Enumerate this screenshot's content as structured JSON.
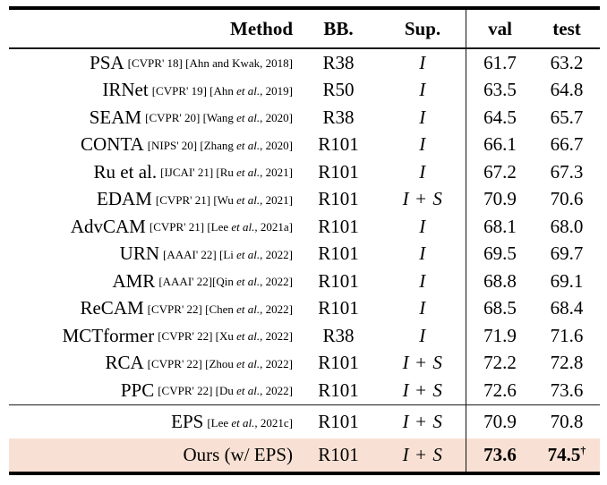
{
  "header": {
    "method": "Method",
    "bb": "BB.",
    "sup": "Sup.",
    "val": "val",
    "test": "test"
  },
  "rows": [
    {
      "method": "PSA",
      "citation": "[CVPR' 18] [Ahn and Kwak, 2018]",
      "bb": "R38",
      "sup": "I",
      "val": "61.7",
      "test": "63.2"
    },
    {
      "method": "IRNet",
      "citation": "[CVPR' 19] [Ahn et al., 2019]",
      "bb": "R50",
      "sup": "I",
      "val": "63.5",
      "test": "64.8"
    },
    {
      "method": "SEAM",
      "citation": "[CVPR' 20] [Wang et al., 2020]",
      "bb": "R38",
      "sup": "I",
      "val": "64.5",
      "test": "65.7"
    },
    {
      "method": "CONTA",
      "citation": "[NIPS' 20] [Zhang et al., 2020]",
      "bb": "R101",
      "sup": "I",
      "val": "66.1",
      "test": "66.7"
    },
    {
      "method": "Ru et al.",
      "citation": "[IJCAI' 21] [Ru et al., 2021]",
      "bb": "R101",
      "sup": "I",
      "val": "67.2",
      "test": "67.3"
    },
    {
      "method": "EDAM",
      "citation": "[CVPR' 21] [Wu et al., 2021]",
      "bb": "R101",
      "sup": "I + S",
      "val": "70.9",
      "test": "70.6"
    },
    {
      "method": "AdvCAM",
      "citation": "[CVPR' 21] [Lee et al., 2021a]",
      "bb": "R101",
      "sup": "I",
      "val": "68.1",
      "test": "68.0"
    },
    {
      "method": "URN",
      "citation": "[AAAI' 22] [Li et al., 2022]",
      "bb": "R101",
      "sup": "I",
      "val": "69.5",
      "test": "69.7"
    },
    {
      "method": "AMR",
      "citation": "[AAAI' 22][Qin et al., 2022]",
      "bb": "R101",
      "sup": "I",
      "val": "68.8",
      "test": "69.1"
    },
    {
      "method": "ReCAM",
      "citation": "[CVPR' 22] [Chen et al., 2022]",
      "bb": "R101",
      "sup": "I",
      "val": "68.5",
      "test": "68.4"
    },
    {
      "method": "MCTformer",
      "citation": "[CVPR' 22] [Xu et al., 2022]",
      "bb": "R38",
      "sup": "I",
      "val": "71.9",
      "test": "71.6"
    },
    {
      "method": "RCA",
      "citation": "[CVPR' 22] [Zhou et al., 2022]",
      "bb": "R101",
      "sup": "I + S",
      "val": "72.2",
      "test": "72.8"
    },
    {
      "method": "PPC",
      "citation": "[CVPR' 22] [Du et al., 2022]",
      "bb": "R101",
      "sup": "I + S",
      "val": "72.6",
      "test": "73.6"
    }
  ],
  "footer_rows": [
    {
      "method": "EPS",
      "citation": "[Lee et al., 2021c]",
      "bb": "R101",
      "sup": "I + S",
      "val": "70.9",
      "test": "70.8",
      "bold_values": false,
      "highlighted": false,
      "test_superscript": ""
    },
    {
      "method": "Ours (w/ EPS)",
      "citation": "",
      "bb": "R101",
      "sup": "I + S",
      "val": "73.6",
      "test": "74.5",
      "bold_values": true,
      "highlighted": true,
      "test_superscript": "†"
    }
  ],
  "colors": {
    "highlight_row_bg": "#f8e1d4",
    "text": "#000000",
    "rule": "#000000"
  }
}
